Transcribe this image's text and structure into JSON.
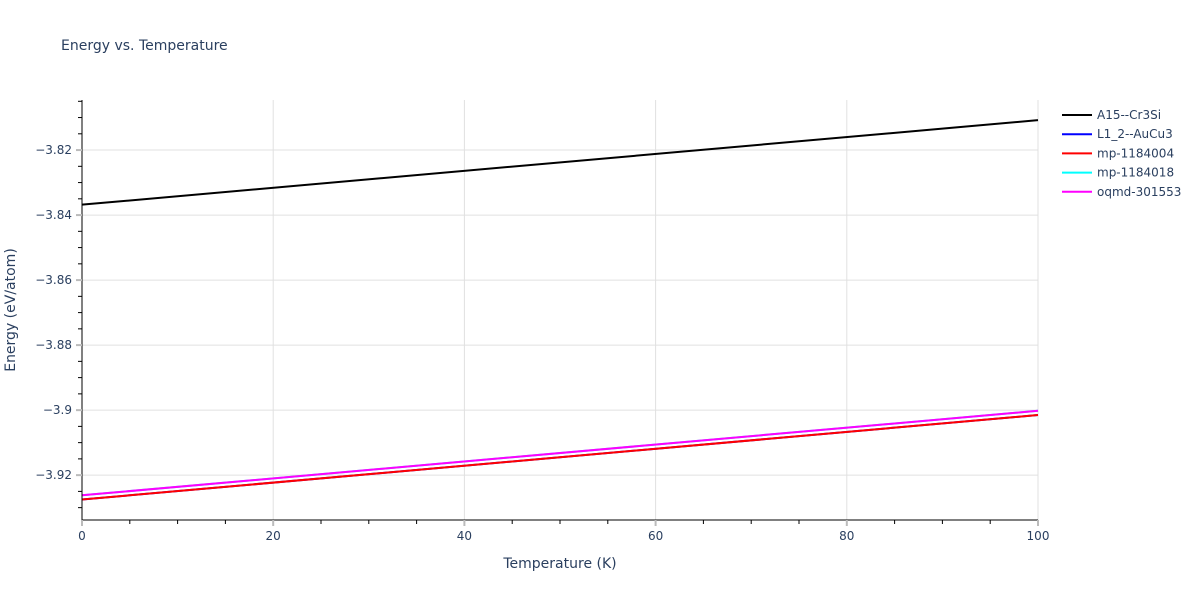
{
  "chart_data": {
    "type": "line",
    "title": "Energy vs. Temperature",
    "xlabel": "Temperature (K)",
    "ylabel": "Energy (eV/atom)",
    "xlim": [
      0,
      100
    ],
    "ylim": [
      -3.9338,
      -3.8046
    ],
    "x_ticks": [
      0,
      20,
      40,
      60,
      80,
      100
    ],
    "x_tick_labels": [
      "0",
      "20",
      "40",
      "60",
      "80",
      "100"
    ],
    "y_ticks": [
      -3.82,
      -3.84,
      -3.86,
      -3.88,
      -3.9,
      -3.92
    ],
    "y_tick_labels": [
      "−3.82",
      "−3.84",
      "−3.86",
      "−3.88",
      "−3.9",
      "−3.92"
    ],
    "grid": true,
    "legend_position": "right-top",
    "x": [
      0,
      100
    ],
    "series": [
      {
        "name": "A15--Cr3Si",
        "color": "#000000",
        "values": [
          -3.8368,
          -3.8108
        ]
      },
      {
        "name": "L1_2--AuCu3",
        "color": "#0000ff",
        "values": [
          -3.9275,
          -3.9015
        ]
      },
      {
        "name": "mp-1184004",
        "color": "#ff0000",
        "values": [
          -3.9275,
          -3.9015
        ]
      },
      {
        "name": "mp-1184018",
        "color": "#00ffff",
        "values": [
          -3.9262,
          -3.9002
        ]
      },
      {
        "name": "oqmd-301553",
        "color": "#ff00ff",
        "values": [
          -3.9262,
          -3.9002
        ]
      }
    ]
  }
}
